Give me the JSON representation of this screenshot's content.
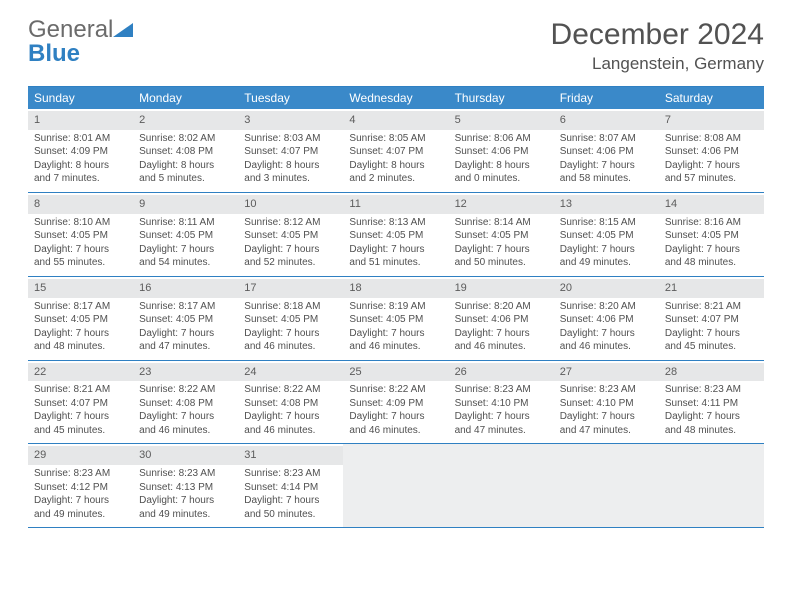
{
  "logo": {
    "gray": "General",
    "blue": "Blue"
  },
  "title": "December 2024",
  "location": "Langenstein, Germany",
  "colors": {
    "header_bg": "#3a89c9",
    "header_text": "#ffffff",
    "border": "#2f80c2",
    "daynum_bg": "#e6e7e8",
    "empty_bg": "#edeeef",
    "body_text": "#505050",
    "title_text": "#525252"
  },
  "typography": {
    "title_fontsize": 30,
    "location_fontsize": 17,
    "dayheader_fontsize": 12,
    "cell_fontsize": 10,
    "logo_fontsize": 24
  },
  "layout": {
    "columns": 7,
    "rows": 5
  },
  "day_names": [
    "Sunday",
    "Monday",
    "Tuesday",
    "Wednesday",
    "Thursday",
    "Friday",
    "Saturday"
  ],
  "weeks": [
    [
      {
        "n": "1",
        "sr": "Sunrise: 8:01 AM",
        "ss": "Sunset: 4:09 PM",
        "d1": "Daylight: 8 hours",
        "d2": "and 7 minutes."
      },
      {
        "n": "2",
        "sr": "Sunrise: 8:02 AM",
        "ss": "Sunset: 4:08 PM",
        "d1": "Daylight: 8 hours",
        "d2": "and 5 minutes."
      },
      {
        "n": "3",
        "sr": "Sunrise: 8:03 AM",
        "ss": "Sunset: 4:07 PM",
        "d1": "Daylight: 8 hours",
        "d2": "and 3 minutes."
      },
      {
        "n": "4",
        "sr": "Sunrise: 8:05 AM",
        "ss": "Sunset: 4:07 PM",
        "d1": "Daylight: 8 hours",
        "d2": "and 2 minutes."
      },
      {
        "n": "5",
        "sr": "Sunrise: 8:06 AM",
        "ss": "Sunset: 4:06 PM",
        "d1": "Daylight: 8 hours",
        "d2": "and 0 minutes."
      },
      {
        "n": "6",
        "sr": "Sunrise: 8:07 AM",
        "ss": "Sunset: 4:06 PM",
        "d1": "Daylight: 7 hours",
        "d2": "and 58 minutes."
      },
      {
        "n": "7",
        "sr": "Sunrise: 8:08 AM",
        "ss": "Sunset: 4:06 PM",
        "d1": "Daylight: 7 hours",
        "d2": "and 57 minutes."
      }
    ],
    [
      {
        "n": "8",
        "sr": "Sunrise: 8:10 AM",
        "ss": "Sunset: 4:05 PM",
        "d1": "Daylight: 7 hours",
        "d2": "and 55 minutes."
      },
      {
        "n": "9",
        "sr": "Sunrise: 8:11 AM",
        "ss": "Sunset: 4:05 PM",
        "d1": "Daylight: 7 hours",
        "d2": "and 54 minutes."
      },
      {
        "n": "10",
        "sr": "Sunrise: 8:12 AM",
        "ss": "Sunset: 4:05 PM",
        "d1": "Daylight: 7 hours",
        "d2": "and 52 minutes."
      },
      {
        "n": "11",
        "sr": "Sunrise: 8:13 AM",
        "ss": "Sunset: 4:05 PM",
        "d1": "Daylight: 7 hours",
        "d2": "and 51 minutes."
      },
      {
        "n": "12",
        "sr": "Sunrise: 8:14 AM",
        "ss": "Sunset: 4:05 PM",
        "d1": "Daylight: 7 hours",
        "d2": "and 50 minutes."
      },
      {
        "n": "13",
        "sr": "Sunrise: 8:15 AM",
        "ss": "Sunset: 4:05 PM",
        "d1": "Daylight: 7 hours",
        "d2": "and 49 minutes."
      },
      {
        "n": "14",
        "sr": "Sunrise: 8:16 AM",
        "ss": "Sunset: 4:05 PM",
        "d1": "Daylight: 7 hours",
        "d2": "and 48 minutes."
      }
    ],
    [
      {
        "n": "15",
        "sr": "Sunrise: 8:17 AM",
        "ss": "Sunset: 4:05 PM",
        "d1": "Daylight: 7 hours",
        "d2": "and 48 minutes."
      },
      {
        "n": "16",
        "sr": "Sunrise: 8:17 AM",
        "ss": "Sunset: 4:05 PM",
        "d1": "Daylight: 7 hours",
        "d2": "and 47 minutes."
      },
      {
        "n": "17",
        "sr": "Sunrise: 8:18 AM",
        "ss": "Sunset: 4:05 PM",
        "d1": "Daylight: 7 hours",
        "d2": "and 46 minutes."
      },
      {
        "n": "18",
        "sr": "Sunrise: 8:19 AM",
        "ss": "Sunset: 4:05 PM",
        "d1": "Daylight: 7 hours",
        "d2": "and 46 minutes."
      },
      {
        "n": "19",
        "sr": "Sunrise: 8:20 AM",
        "ss": "Sunset: 4:06 PM",
        "d1": "Daylight: 7 hours",
        "d2": "and 46 minutes."
      },
      {
        "n": "20",
        "sr": "Sunrise: 8:20 AM",
        "ss": "Sunset: 4:06 PM",
        "d1": "Daylight: 7 hours",
        "d2": "and 46 minutes."
      },
      {
        "n": "21",
        "sr": "Sunrise: 8:21 AM",
        "ss": "Sunset: 4:07 PM",
        "d1": "Daylight: 7 hours",
        "d2": "and 45 minutes."
      }
    ],
    [
      {
        "n": "22",
        "sr": "Sunrise: 8:21 AM",
        "ss": "Sunset: 4:07 PM",
        "d1": "Daylight: 7 hours",
        "d2": "and 45 minutes."
      },
      {
        "n": "23",
        "sr": "Sunrise: 8:22 AM",
        "ss": "Sunset: 4:08 PM",
        "d1": "Daylight: 7 hours",
        "d2": "and 46 minutes."
      },
      {
        "n": "24",
        "sr": "Sunrise: 8:22 AM",
        "ss": "Sunset: 4:08 PM",
        "d1": "Daylight: 7 hours",
        "d2": "and 46 minutes."
      },
      {
        "n": "25",
        "sr": "Sunrise: 8:22 AM",
        "ss": "Sunset: 4:09 PM",
        "d1": "Daylight: 7 hours",
        "d2": "and 46 minutes."
      },
      {
        "n": "26",
        "sr": "Sunrise: 8:23 AM",
        "ss": "Sunset: 4:10 PM",
        "d1": "Daylight: 7 hours",
        "d2": "and 47 minutes."
      },
      {
        "n": "27",
        "sr": "Sunrise: 8:23 AM",
        "ss": "Sunset: 4:10 PM",
        "d1": "Daylight: 7 hours",
        "d2": "and 47 minutes."
      },
      {
        "n": "28",
        "sr": "Sunrise: 8:23 AM",
        "ss": "Sunset: 4:11 PM",
        "d1": "Daylight: 7 hours",
        "d2": "and 48 minutes."
      }
    ],
    [
      {
        "n": "29",
        "sr": "Sunrise: 8:23 AM",
        "ss": "Sunset: 4:12 PM",
        "d1": "Daylight: 7 hours",
        "d2": "and 49 minutes."
      },
      {
        "n": "30",
        "sr": "Sunrise: 8:23 AM",
        "ss": "Sunset: 4:13 PM",
        "d1": "Daylight: 7 hours",
        "d2": "and 49 minutes."
      },
      {
        "n": "31",
        "sr": "Sunrise: 8:23 AM",
        "ss": "Sunset: 4:14 PM",
        "d1": "Daylight: 7 hours",
        "d2": "and 50 minutes."
      },
      {
        "empty": true
      },
      {
        "empty": true
      },
      {
        "empty": true
      },
      {
        "empty": true
      }
    ]
  ]
}
